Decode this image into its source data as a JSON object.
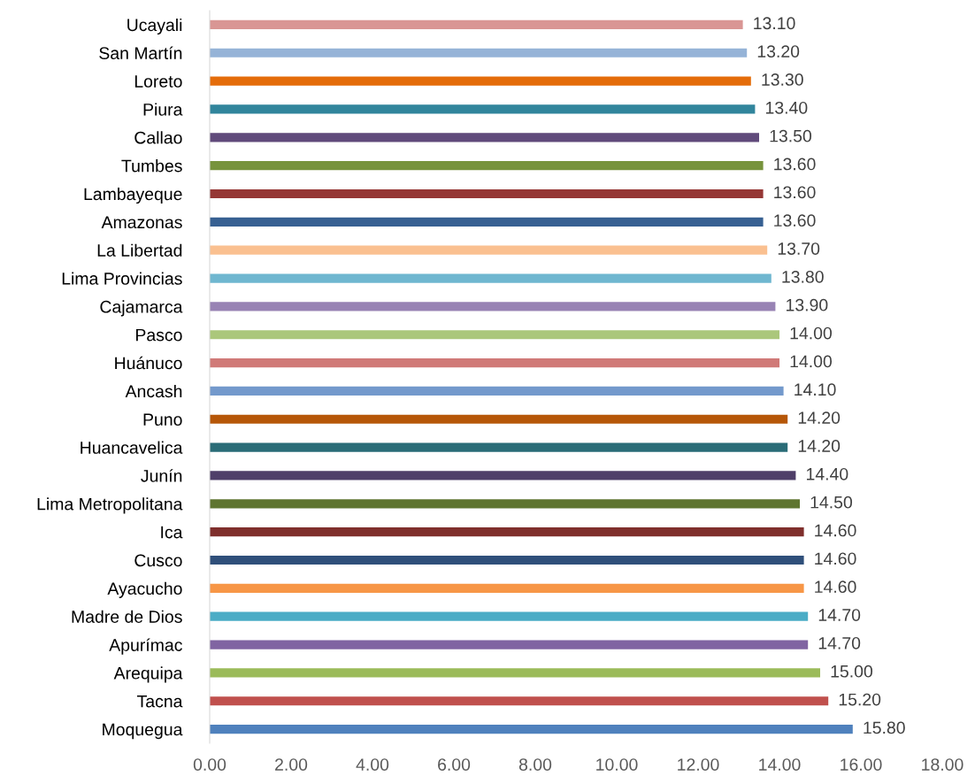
{
  "chart_data": {
    "type": "bar",
    "orientation": "horizontal",
    "categories": [
      "Ucayali",
      "San Martín",
      "Loreto",
      "Piura",
      "Callao",
      "Tumbes",
      "Lambayeque",
      "Amazonas",
      "La Libertad",
      "Lima Provincias",
      "Cajamarca",
      "Pasco",
      "Huánuco",
      "Ancash",
      "Puno",
      "Huancavelica",
      "Junín",
      "Lima Metropolitana",
      "Ica",
      "Cusco",
      "Ayacucho",
      "Madre de Dios",
      "Apurímac",
      "Arequipa",
      "Tacna",
      "Moquegua"
    ],
    "values": [
      13.1,
      13.2,
      13.3,
      13.4,
      13.5,
      13.6,
      13.6,
      13.6,
      13.7,
      13.8,
      13.9,
      14.0,
      14.0,
      14.1,
      14.2,
      14.2,
      14.4,
      14.5,
      14.6,
      14.6,
      14.6,
      14.7,
      14.7,
      15.0,
      15.2,
      15.8
    ],
    "value_labels": [
      "13.10",
      "13.20",
      "13.30",
      "13.40",
      "13.50",
      "13.60",
      "13.60",
      "13.60",
      "13.70",
      "13.80",
      "13.90",
      "14.00",
      "14.00",
      "14.10",
      "14.20",
      "14.20",
      "14.40",
      "14.50",
      "14.60",
      "14.60",
      "14.60",
      "14.70",
      "14.70",
      "15.00",
      "15.20",
      "15.80"
    ],
    "colors": [
      "#d99694",
      "#95b3d7",
      "#e46c0a",
      "#31859c",
      "#604a7b",
      "#77933c",
      "#953735",
      "#376092",
      "#fac090",
      "#6fb7d0",
      "#9883b4",
      "#abc77b",
      "#d07a78",
      "#7399cc",
      "#b65708",
      "#2a6c77",
      "#4f3f69",
      "#5f7530",
      "#7f2f2c",
      "#2f4f7a",
      "#f79646",
      "#4bacc6",
      "#8064a2",
      "#9bbb59",
      "#c0504d",
      "#4f81bd"
    ],
    "xlim": [
      0,
      18
    ],
    "xticks": [
      {
        "value": 0,
        "label": "0.00"
      },
      {
        "value": 2,
        "label": "2.00"
      },
      {
        "value": 4,
        "label": "4.00"
      },
      {
        "value": 6,
        "label": "6.00"
      },
      {
        "value": 8,
        "label": "8.00"
      },
      {
        "value": 10,
        "label": "10.00"
      },
      {
        "value": 12,
        "label": "12.00"
      },
      {
        "value": 14,
        "label": "14.00"
      },
      {
        "value": 16,
        "label": "16.00"
      },
      {
        "value": 18,
        "label": "18.00"
      }
    ],
    "grid": false,
    "legend": false
  }
}
